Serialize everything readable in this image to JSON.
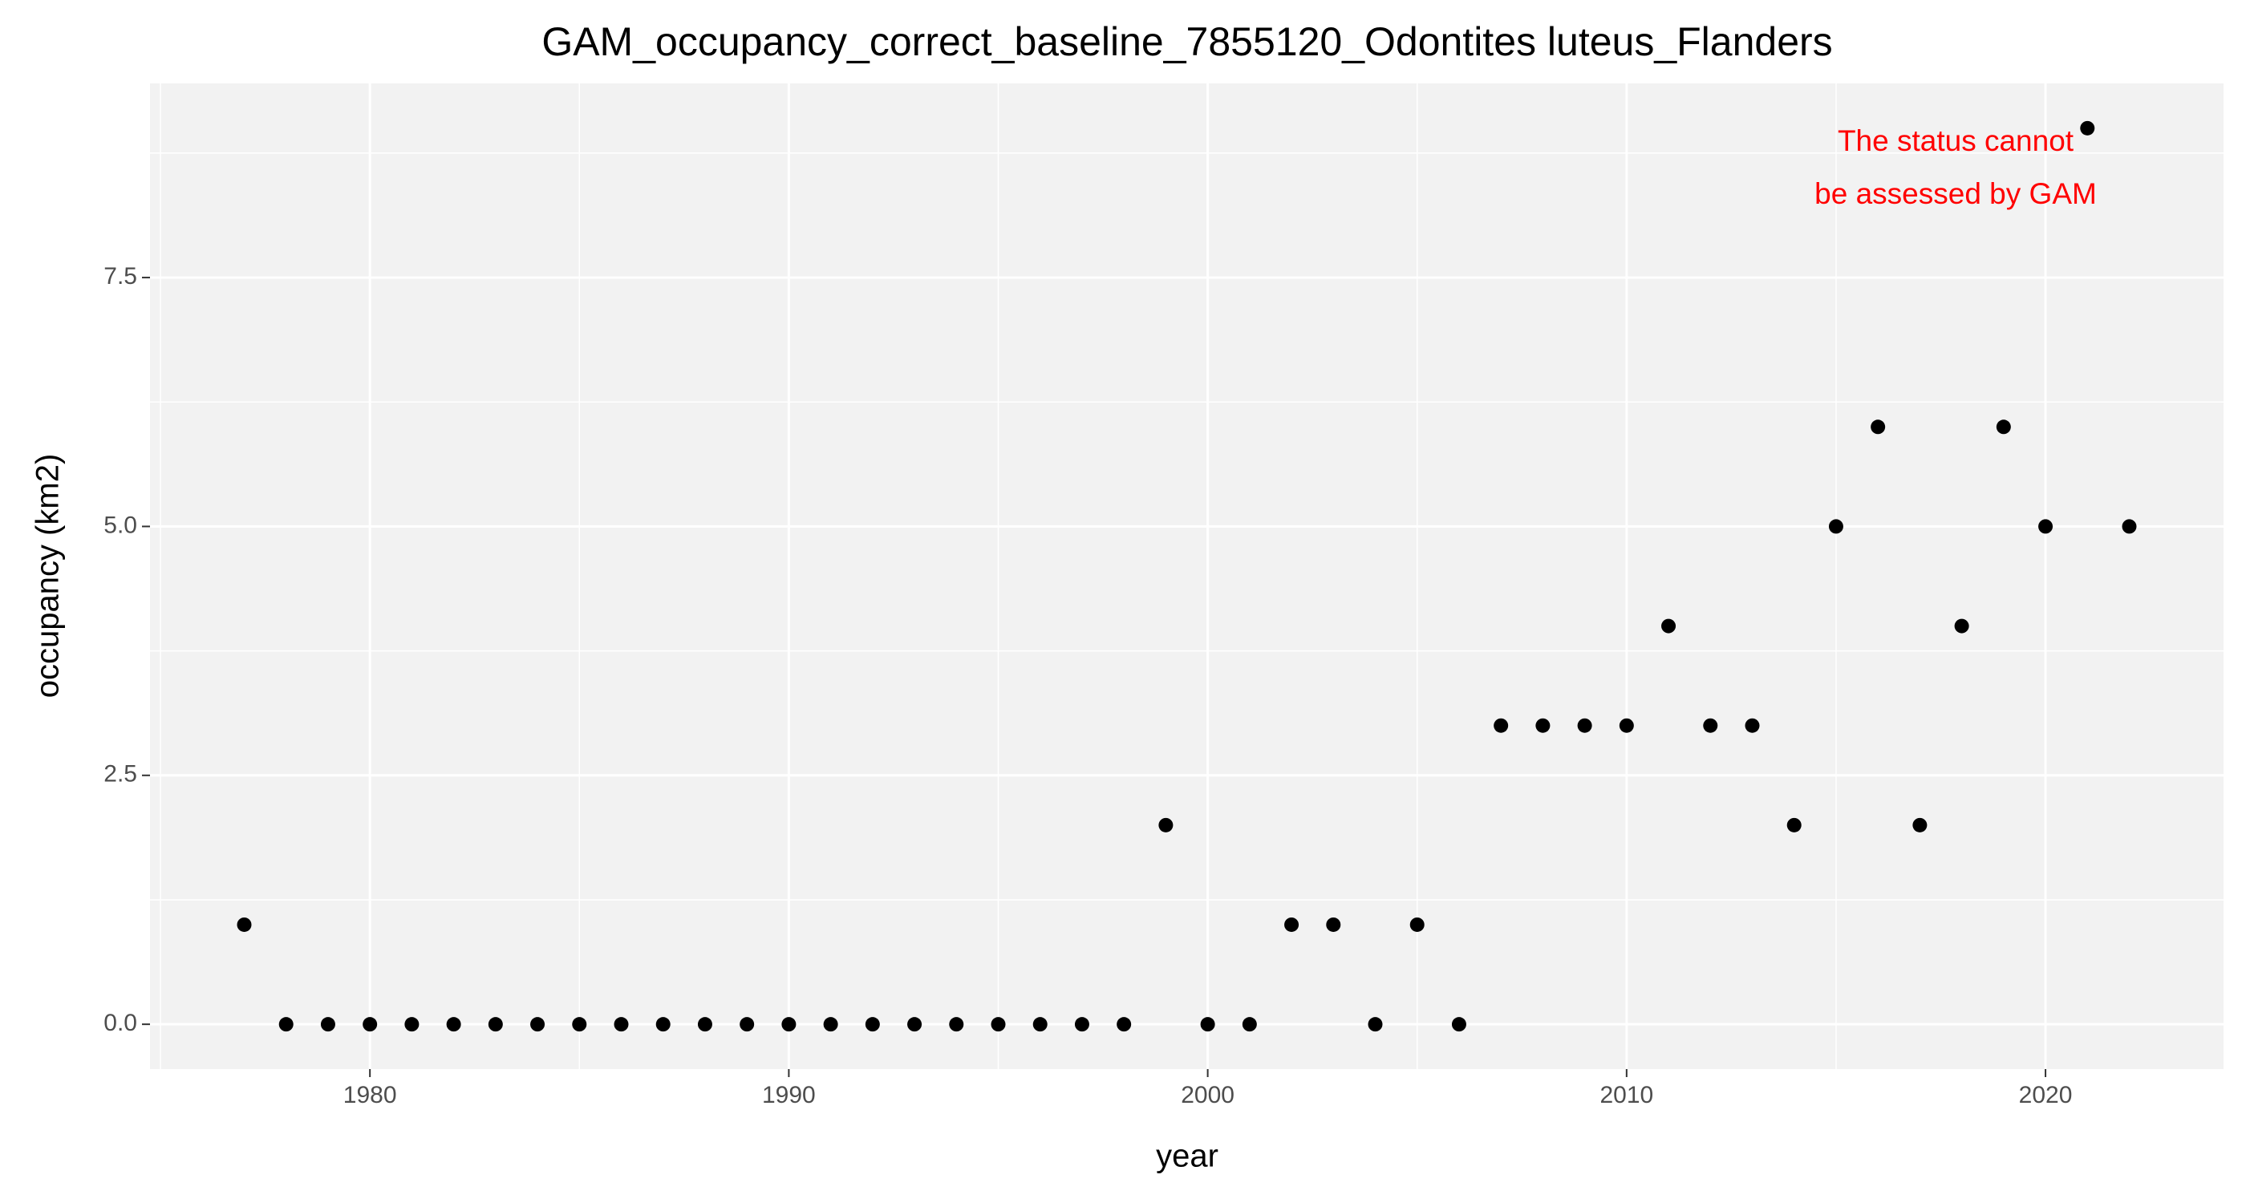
{
  "chart_data": {
    "type": "scatter",
    "title": "GAM_occupancy_correct_baseline_7855120_Odontites luteus_Flanders",
    "x_label": "year",
    "y_label": "occupancy (km2)",
    "annotation": [
      "The status cannot",
      "be assessed by GAM"
    ],
    "annotation_color": "#ff0000",
    "x": [
      1977,
      1978,
      1979,
      1980,
      1981,
      1982,
      1983,
      1984,
      1985,
      1986,
      1987,
      1988,
      1989,
      1990,
      1991,
      1992,
      1993,
      1994,
      1995,
      1996,
      1997,
      1998,
      1999,
      2000,
      2001,
      2002,
      2003,
      2004,
      2005,
      2006,
      2007,
      2008,
      2009,
      2010,
      2011,
      2012,
      2013,
      2014,
      2015,
      2016,
      2017,
      2018,
      2019,
      2020,
      2021,
      2022
    ],
    "values": [
      1,
      0,
      0,
      0,
      0,
      0,
      0,
      0,
      0,
      0,
      0,
      0,
      0,
      0,
      0,
      0,
      0,
      0,
      0,
      0,
      0,
      0,
      2,
      0,
      0,
      1,
      1,
      0,
      1,
      0,
      3,
      3,
      3,
      3,
      4,
      3,
      3,
      2,
      5,
      6,
      2,
      4,
      6,
      5,
      9,
      5
    ],
    "color": "#000000",
    "xlim": [
      1974.75,
      2024.25
    ],
    "xticks": [
      1980,
      1990,
      2000,
      2010,
      2020
    ],
    "ylim": [
      -0.45,
      9.45
    ],
    "yticks": [
      {
        "value": 0,
        "label": "0.0"
      },
      2.5,
      {
        "value": 5,
        "label": "5.0"
      },
      7.5
    ],
    "grid": true
  }
}
